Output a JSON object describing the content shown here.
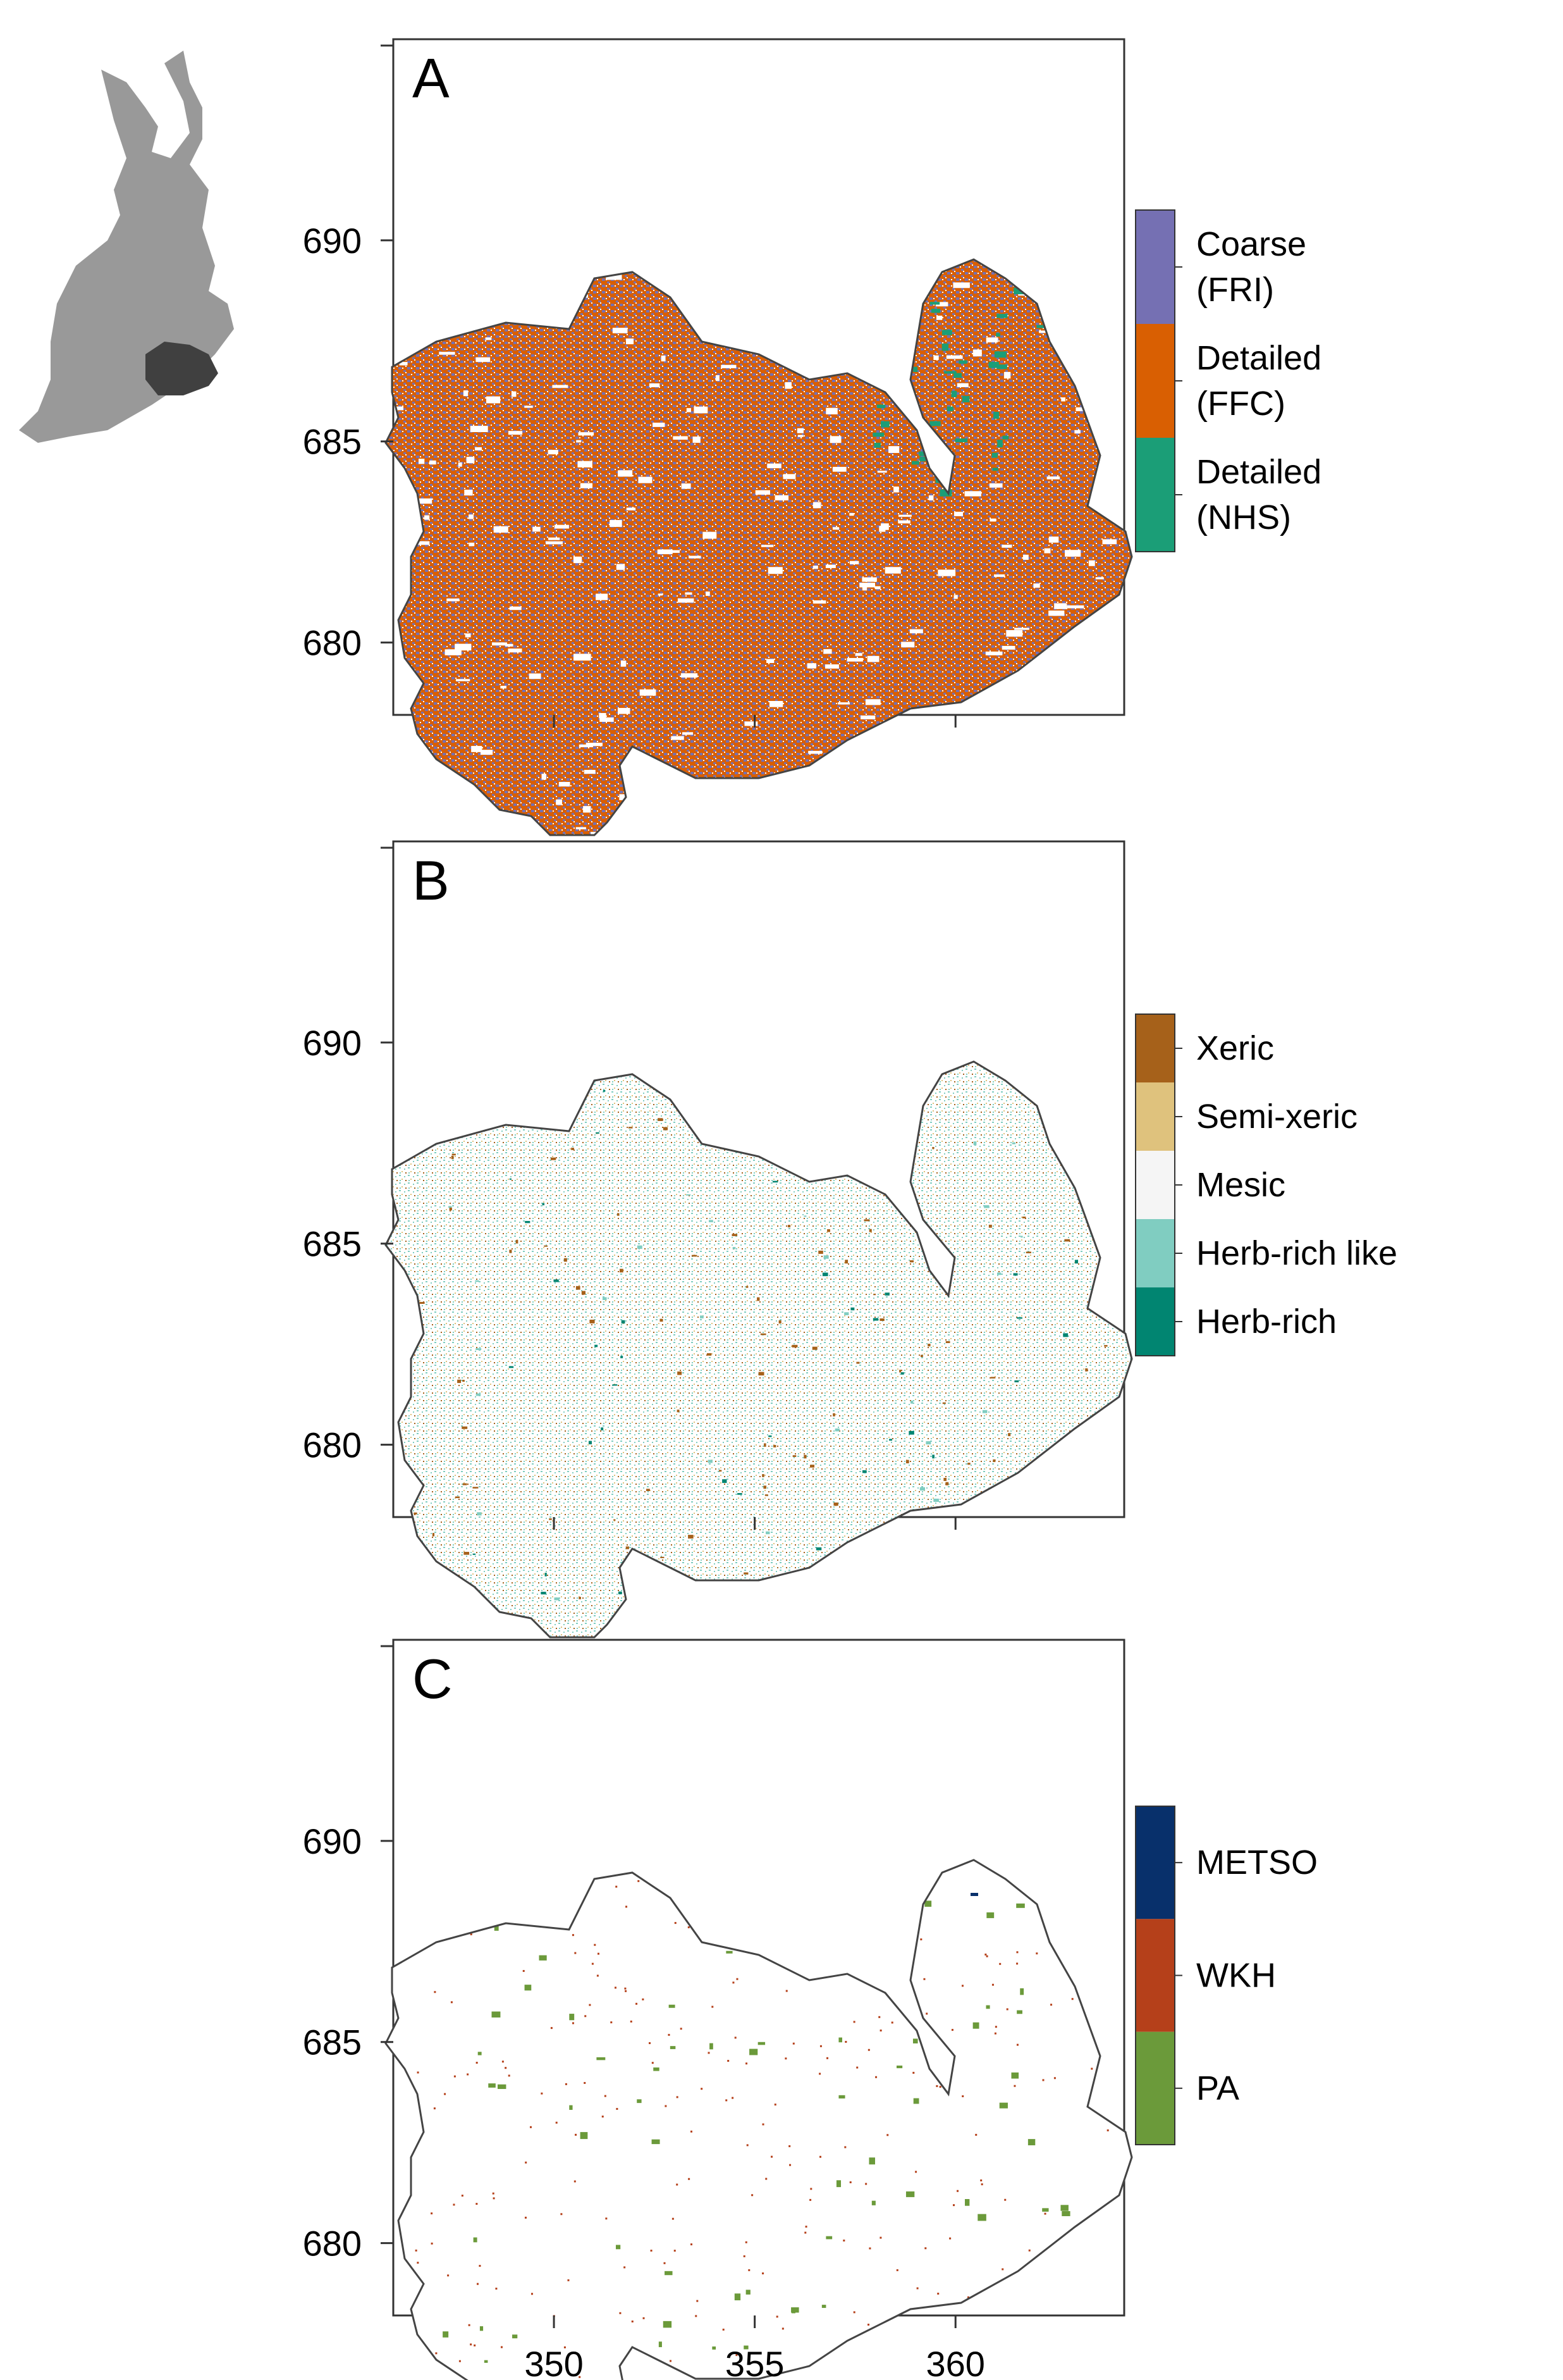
{
  "panels": [
    {
      "id": "A",
      "label": "A",
      "legend": [
        {
          "label_lines": [
            "Coarse",
            "(FRI)"
          ],
          "color": "#7570b3"
        },
        {
          "label_lines": [
            "Detailed",
            "(FFC)"
          ],
          "color": "#d95f02"
        },
        {
          "label_lines": [
            "Detailed",
            "(NHS)"
          ],
          "color": "#1b9e77"
        }
      ]
    },
    {
      "id": "B",
      "label": "B",
      "legend": [
        {
          "label_lines": [
            "Xeric"
          ],
          "color": "#a6611a"
        },
        {
          "label_lines": [
            "Semi-xeric"
          ],
          "color": "#dfc27d"
        },
        {
          "label_lines": [
            "Mesic"
          ],
          "color": "#f5f5f5"
        },
        {
          "label_lines": [
            "Herb-rich like"
          ],
          "color": "#80cdc1"
        },
        {
          "label_lines": [
            "Herb-rich"
          ],
          "color": "#018571"
        }
      ]
    },
    {
      "id": "C",
      "label": "C",
      "legend": [
        {
          "label_lines": [
            "METSO"
          ],
          "color": "#08306b"
        },
        {
          "label_lines": [
            "WKH"
          ],
          "color": "#b5401a"
        },
        {
          "label_lines": [
            "PA"
          ],
          "color": "#6b9a3a"
        }
      ]
    }
  ],
  "axes": {
    "y_ticks": [
      680,
      685,
      690
    ],
    "x_ticks": [
      350,
      355,
      360
    ],
    "x_range": [
      346,
      364.2
    ],
    "y_range": [
      678.2,
      695
    ]
  },
  "inset": {
    "country_color": "#999999",
    "region_color": "#404040"
  }
}
